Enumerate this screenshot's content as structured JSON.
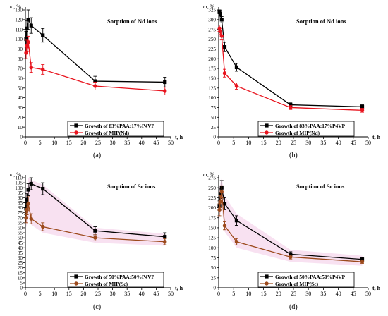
{
  "chart_data": [
    {
      "type": "line",
      "panel_label": "(a)",
      "title": "Sorption of Nd ions",
      "xlabel": "t, h",
      "ylabel": "ω, %",
      "xlim": [
        0,
        50
      ],
      "ylim": [
        0,
        130
      ],
      "xticks": [
        0,
        5,
        10,
        15,
        20,
        25,
        30,
        35,
        40,
        45,
        50
      ],
      "yticks": [
        0,
        10,
        20,
        30,
        40,
        50,
        60,
        70,
        80,
        90,
        100,
        110,
        120,
        130
      ],
      "legend_position": "bottom-right",
      "series": [
        {
          "name": "Growth of 83%PAA:17%P4VP",
          "color": "#000000",
          "marker": "square",
          "x": [
            0.25,
            0.5,
            1,
            2,
            6,
            24,
            48
          ],
          "y": [
            100,
            111,
            120,
            114,
            104,
            57,
            56
          ],
          "err": [
            8,
            8,
            10,
            8,
            7,
            5,
            5
          ]
        },
        {
          "name": "Growth of MIP(Nd)",
          "color": "#e8141e",
          "marker": "circle",
          "x": [
            0.25,
            0.5,
            1,
            2,
            6,
            24,
            48
          ],
          "y": [
            86,
            93,
            97,
            71,
            69,
            52,
            47
          ],
          "err": [
            6,
            6,
            6,
            5,
            5,
            4,
            4
          ]
        }
      ],
      "bands": []
    },
    {
      "type": "line",
      "panel_label": "(b)",
      "title": "Sorption of Nd ions",
      "xlabel": "t, h",
      "ylabel": "ω, %",
      "xlim": [
        0,
        50
      ],
      "ylim": [
        0,
        325
      ],
      "xticks": [
        0,
        5,
        10,
        15,
        20,
        25,
        30,
        35,
        40,
        45,
        50
      ],
      "yticks": [
        0,
        25,
        50,
        75,
        100,
        125,
        150,
        175,
        200,
        225,
        250,
        275,
        300,
        325
      ],
      "legend_position": "bottom-right",
      "series": [
        {
          "name": "Growth of 83%PAA:17%P4VP",
          "color": "#000000",
          "marker": "square",
          "x": [
            0.25,
            0.5,
            1,
            2,
            6,
            24,
            48
          ],
          "y": [
            320,
            315,
            300,
            230,
            178,
            82,
            77
          ],
          "err": [
            5,
            8,
            8,
            12,
            10,
            5,
            5
          ]
        },
        {
          "name": "Growth of MIP(Nd)",
          "color": "#e8141e",
          "marker": "circle",
          "x": [
            0.25,
            0.5,
            1,
            2,
            6,
            24,
            48
          ],
          "y": [
            278,
            270,
            258,
            163,
            130,
            75,
            68
          ],
          "err": [
            8,
            8,
            10,
            10,
            8,
            5,
            5
          ]
        }
      ],
      "bands": []
    },
    {
      "type": "line",
      "panel_label": "(c)",
      "title": "Sorption of Sc ions",
      "xlabel": "t, h",
      "ylabel": "ω, %",
      "xlim": [
        0,
        50
      ],
      "ylim": [
        0,
        110
      ],
      "xticks": [
        0,
        5,
        10,
        15,
        20,
        25,
        30,
        35,
        40,
        45,
        50
      ],
      "yticks": [
        0,
        5,
        10,
        15,
        20,
        25,
        30,
        35,
        40,
        45,
        50,
        55,
        60,
        65,
        70,
        75,
        80,
        85,
        90,
        95,
        100,
        105,
        110
      ],
      "legend_position": "bottom-right",
      "series": [
        {
          "name": "Growth of 50%PAA:50%P4VP",
          "color": "#000000",
          "marker": "square",
          "x": [
            0.25,
            0.5,
            1,
            2,
            6,
            24,
            48
          ],
          "y": [
            79,
            88,
            98,
            104,
            99,
            57,
            51
          ],
          "err": [
            6,
            6,
            6,
            6,
            6,
            4,
            4
          ]
        },
        {
          "name": "Growth of MIP(Sc)",
          "color": "#9c4a1c",
          "marker": "circle",
          "x": [
            0.25,
            0.5,
            1,
            2,
            6,
            24,
            48
          ],
          "y": [
            70,
            78,
            84,
            69,
            61,
            50,
            46
          ],
          "err": [
            5,
            5,
            7,
            5,
            4,
            3,
            3
          ]
        }
      ],
      "bands": [
        {
          "color": "#f7dcef",
          "x": [
            0.25,
            1,
            2,
            6,
            24,
            48
          ],
          "lower": [
            60,
            70,
            63,
            55,
            45,
            42
          ],
          "upper": [
            95,
            110,
            108,
            103,
            60,
            54
          ]
        }
      ]
    },
    {
      "type": "line",
      "panel_label": "(d)",
      "title": "Sorption of Sc ions",
      "xlabel": "t, h",
      "ylabel": "ω, %",
      "xlim": [
        0,
        50
      ],
      "ylim": [
        0,
        275
      ],
      "xticks": [
        0,
        5,
        10,
        15,
        20,
        25,
        30,
        35,
        40,
        45,
        50
      ],
      "yticks": [
        0,
        25,
        50,
        75,
        100,
        125,
        150,
        175,
        200,
        225,
        250,
        275
      ],
      "legend_position": "bottom-right",
      "series": [
        {
          "name": "Growth of 50%PAA:50%P4VP",
          "color": "#000000",
          "marker": "square",
          "x": [
            0.25,
            0.5,
            1,
            2,
            6,
            24,
            48
          ],
          "y": [
            205,
            235,
            250,
            210,
            168,
            84,
            71
          ],
          "err": [
            12,
            12,
            18,
            15,
            12,
            6,
            5
          ]
        },
        {
          "name": "Growth of MIP(Sc)",
          "color": "#9c4a1c",
          "marker": "circle",
          "x": [
            0.25,
            0.5,
            1,
            2,
            6,
            24,
            48
          ],
          "y": [
            195,
            215,
            240,
            155,
            115,
            77,
            65
          ],
          "err": [
            15,
            15,
            15,
            10,
            8,
            5,
            4
          ]
        }
      ],
      "bands": [
        {
          "color": "#f7dcef",
          "x": [
            0.25,
            1,
            2,
            6,
            24,
            48
          ],
          "lower": [
            170,
            200,
            140,
            100,
            65,
            55
          ],
          "upper": [
            250,
            275,
            230,
            185,
            95,
            80
          ]
        }
      ]
    }
  ]
}
